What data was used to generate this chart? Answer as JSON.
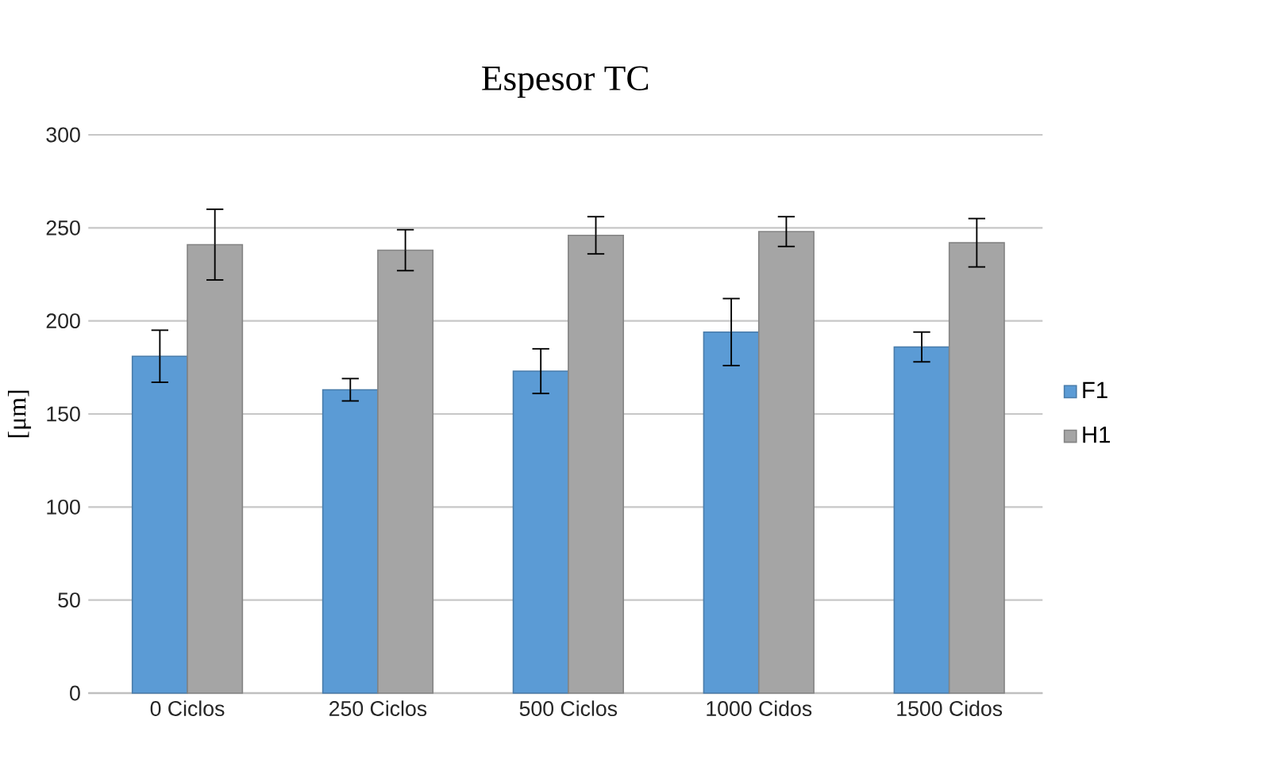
{
  "chart_data": {
    "type": "bar",
    "title": "Espesor TC",
    "ylabel": "[μm]",
    "categories": [
      "0 Ciclos",
      "250 Ciclos",
      "500 Ciclos",
      "1000 Cidos",
      "1500 Cidos"
    ],
    "series": [
      {
        "name": "F1",
        "color": "#5b9bd5",
        "values": [
          181,
          163,
          173,
          194,
          186
        ],
        "errors": [
          14,
          6,
          12,
          18,
          8
        ]
      },
      {
        "name": "H1",
        "color": "#a5a5a5",
        "values": [
          241,
          238,
          246,
          248,
          242
        ],
        "errors": [
          19,
          11,
          10,
          8,
          13
        ]
      }
    ],
    "ylim": [
      0,
      300
    ],
    "yticks": [
      0,
      50,
      100,
      150,
      200,
      250,
      300
    ],
    "grid": "y",
    "legend": "right"
  }
}
